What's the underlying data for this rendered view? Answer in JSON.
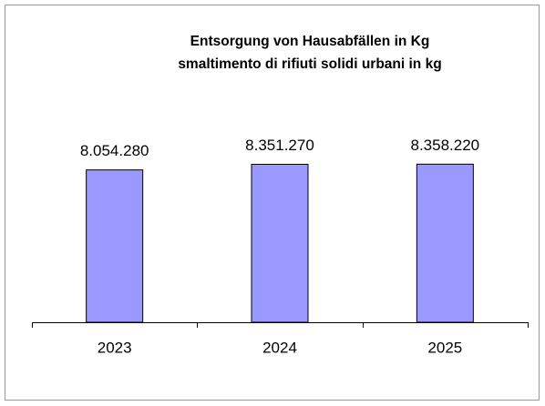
{
  "chart_data": {
    "type": "bar",
    "title": "Entsorgung von Hausabfällen  in Kg",
    "subtitle": "smaltimento di rifiuti solidi urbani in kg",
    "categories": [
      "2023",
      "2024",
      "2025"
    ],
    "values": [
      8054280,
      8351270,
      8358220
    ],
    "value_labels": [
      "8.054.280",
      "8.351.270",
      "8.358.220"
    ],
    "color": "#9999ff",
    "ylim": [
      0,
      9000000
    ]
  }
}
